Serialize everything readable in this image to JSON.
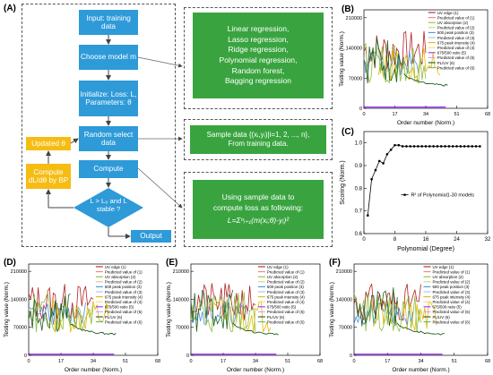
{
  "panels": {
    "a": "(A)",
    "b": "(B)",
    "c": "(C)",
    "d": "(D)",
    "e": "(E)",
    "f": "(F)"
  },
  "flow": {
    "input": "Input: training data",
    "choose": "Choose model m",
    "init": "Initialize: Loss: L, Parameters: θ",
    "random": "Random select data",
    "compute": "Compute",
    "decision": "L > L₀ and L stable ?",
    "output": "Output",
    "updated": "Updated θ",
    "gradient": "Compute dL/dθ by BP"
  },
  "models_box": [
    "Linear regression,",
    "Lasso regression,",
    "Ridge regression,",
    "Polynomial regression,",
    "Random forest,",
    "Bagging regression"
  ],
  "sample_box": [
    "Sample data {(xᵢ,yᵢ)|i=1, 2, ..., n},",
    "From training data."
  ],
  "loss_box": [
    "Using sample data to",
    "compute loss as following:",
    "L=Σⁿᵢ₌₁(m(xᵢ;θ)-yᵢ)²"
  ],
  "colors": {
    "blue": "#2e9ad8",
    "green": "#39a43f",
    "yellow": "#f6bc12"
  },
  "series_chart": {
    "ylabel": "Testing value (Norm.)",
    "xlabel": "Order number (Norm.)",
    "xticks": [
      "0",
      "17",
      "34",
      "51",
      "68"
    ],
    "yticks": [
      "0",
      "70000",
      "140000",
      "210000"
    ],
    "legend": [
      {
        "label": "UV edge (1)",
        "color": "#b22222"
      },
      {
        "label": "Predicted value of (1)",
        "color": "#f08080"
      },
      {
        "label": "UV absorption (2)",
        "color": "#8fbc3f"
      },
      {
        "label": "Predicted value of (2)",
        "color": "#c0d97a"
      },
      {
        "label": "500 peak position (3)",
        "color": "#4a90e2"
      },
      {
        "label": "Predicted value of (3)",
        "color": "#9fc5f0"
      },
      {
        "label": "675 peak intensity (4)",
        "color": "#e6b800"
      },
      {
        "label": "Predicted value of (4)",
        "color": "#f3dc7a"
      },
      {
        "label": "675/500 ratio (5)",
        "color": "#9b30ff"
      },
      {
        "label": "Predicted value of (5)",
        "color": "#d49cff"
      },
      {
        "label": "PL/UV (6)",
        "color": "#1e5e1e"
      },
      {
        "label": "Predicted value of (6)",
        "color": "#6fb36f"
      }
    ]
  },
  "chart_data": {
    "type": "line",
    "xlabel": "Polynomial (Degree)",
    "ylabel": "Scoring (Norm.)",
    "legend": "R² of Polynomial1-30 models",
    "x": [
      1,
      2,
      3,
      4,
      5,
      6,
      7,
      8,
      9,
      10,
      11,
      12,
      13,
      14,
      15,
      16,
      17,
      18,
      19,
      20,
      21,
      22,
      23,
      24,
      25,
      26,
      27,
      28,
      29,
      30
    ],
    "y": [
      0.68,
      0.84,
      0.88,
      0.92,
      0.91,
      0.95,
      0.97,
      0.99,
      0.99,
      0.985,
      0.985,
      0.985,
      0.985,
      0.985,
      0.985,
      0.985,
      0.985,
      0.985,
      0.985,
      0.985,
      0.985,
      0.985,
      0.985,
      0.985,
      0.985,
      0.985,
      0.985,
      0.985,
      0.985,
      0.985
    ],
    "xticks": [
      "0",
      "8",
      "16",
      "24",
      "32"
    ],
    "yticks": [
      "0.6",
      "0.7",
      "0.8",
      "0.9",
      "1.0"
    ],
    "xlim": [
      0,
      32
    ],
    "ylim": [
      0.6,
      1.05
    ]
  }
}
